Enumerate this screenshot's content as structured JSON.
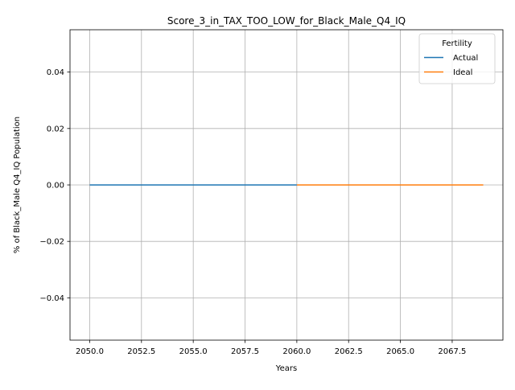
{
  "chart_data": {
    "type": "line",
    "title": "Score_3_in_TAX_TOO_LOW_for_Black_Male_Q4_IQ",
    "xlabel": "Years",
    "ylabel": "% of Black_Male Q4_IQ Population",
    "xlim": [
      2049.05,
      2069.95
    ],
    "ylim": [
      -0.055,
      0.055
    ],
    "xticks": [
      2050.0,
      2052.5,
      2055.0,
      2057.5,
      2060.0,
      2062.5,
      2065.0,
      2067.5
    ],
    "xtick_labels": [
      "2050.0",
      "2052.5",
      "2055.0",
      "2057.5",
      "2060.0",
      "2062.5",
      "2065.0",
      "2067.5"
    ],
    "yticks": [
      -0.04,
      -0.02,
      0.0,
      0.02,
      0.04
    ],
    "ytick_labels": [
      "−0.04",
      "−0.02",
      "0.00",
      "0.02",
      "0.04"
    ],
    "grid": true,
    "legend": {
      "title": "Fertility",
      "placement": "upper right"
    },
    "series": [
      {
        "name": "Actual",
        "color": "#1f77b4",
        "x": [
          2050,
          2051,
          2052,
          2053,
          2054,
          2055,
          2056,
          2057,
          2058,
          2059,
          2060
        ],
        "y": [
          0,
          0,
          0,
          0,
          0,
          0,
          0,
          0,
          0,
          0,
          0
        ]
      },
      {
        "name": "Ideal",
        "color": "#ff7f0e",
        "x": [
          2060,
          2061,
          2062,
          2063,
          2064,
          2065,
          2066,
          2067,
          2068,
          2069
        ],
        "y": [
          0,
          0,
          0,
          0,
          0,
          0,
          0,
          0,
          0,
          0
        ]
      }
    ]
  }
}
